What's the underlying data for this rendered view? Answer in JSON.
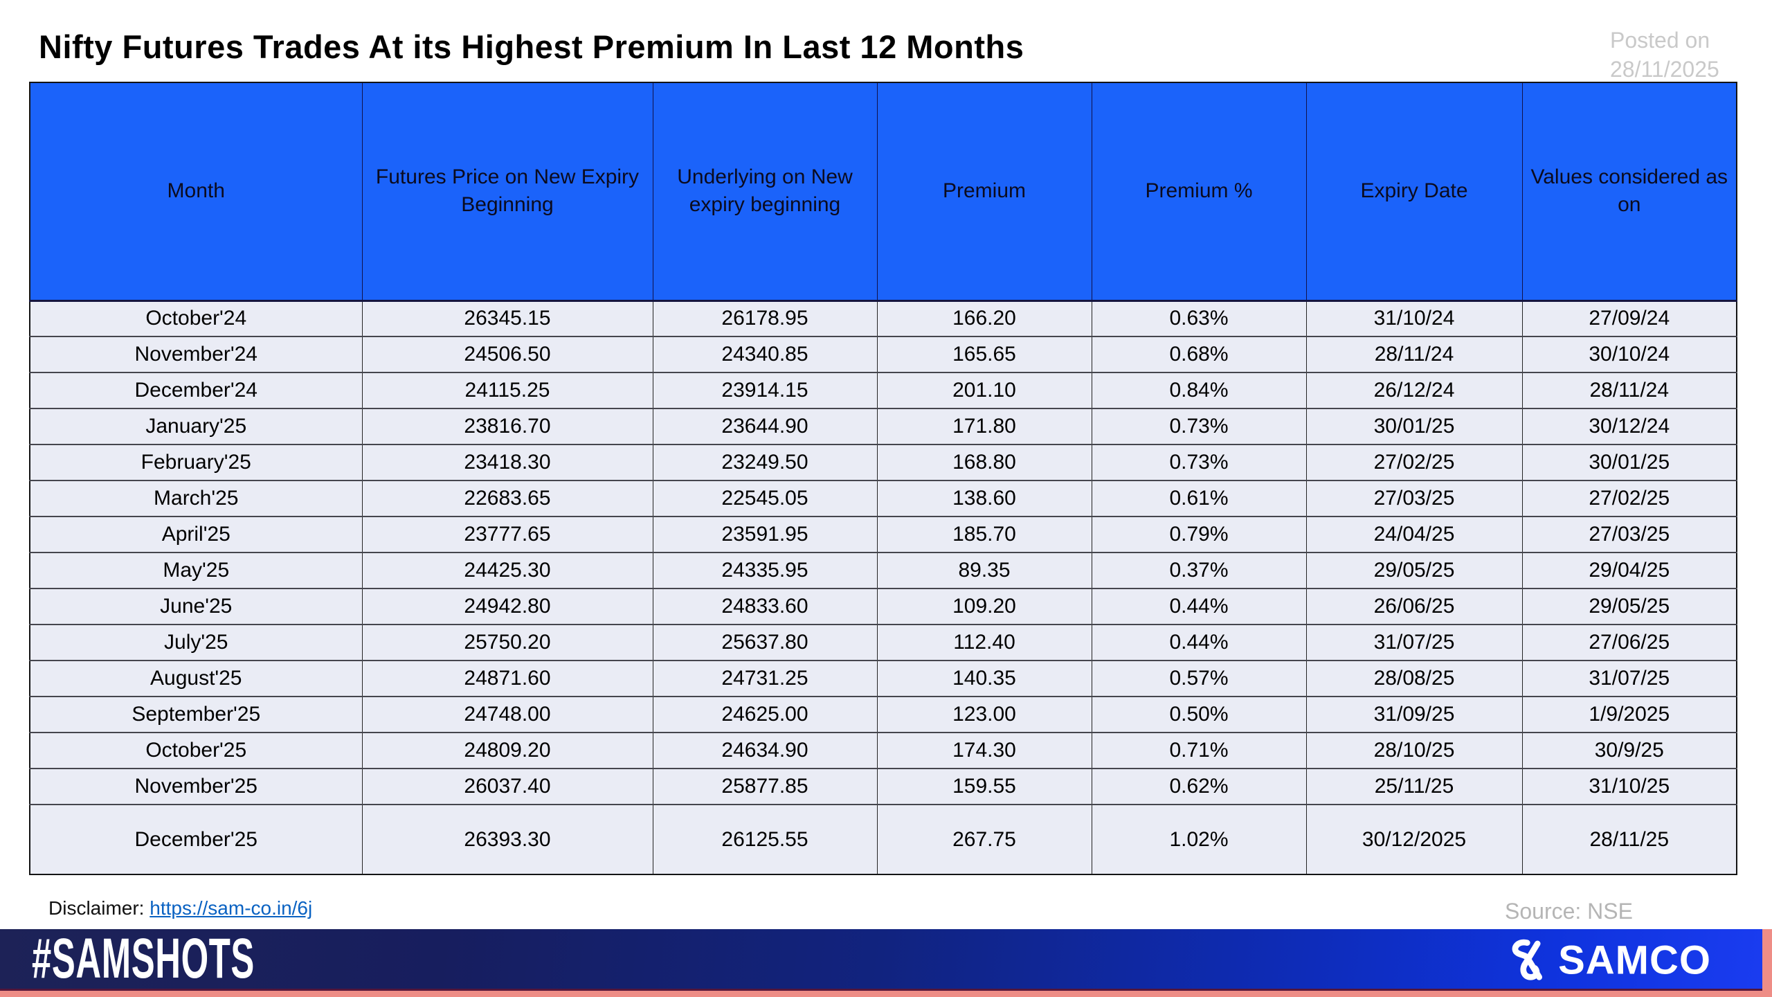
{
  "title": "Nifty Futures Trades At its Highest Premium In Last 12 Months",
  "posted_on": {
    "label": "Posted on",
    "date": "28/11/2025"
  },
  "chart_data": {
    "type": "table",
    "title": "Nifty Futures Trades At its Highest Premium In Last 12 Months",
    "columns": [
      "Month",
      "Futures Price on New Expiry Beginning",
      "Underlying on New expiry beginning",
      "Premium",
      "Premium %",
      "Expiry Date",
      "Values considered as on"
    ],
    "rows": [
      [
        "October'24",
        "26345.15",
        "26178.95",
        "166.20",
        "0.63%",
        "31/10/24",
        "27/09/24"
      ],
      [
        "November'24",
        "24506.50",
        "24340.85",
        "165.65",
        "0.68%",
        "28/11/24",
        "30/10/24"
      ],
      [
        "December'24",
        "24115.25",
        "23914.15",
        "201.10",
        "0.84%",
        "26/12/24",
        "28/11/24"
      ],
      [
        "January'25",
        "23816.70",
        "23644.90",
        "171.80",
        "0.73%",
        "30/01/25",
        "30/12/24"
      ],
      [
        "February'25",
        "23418.30",
        "23249.50",
        "168.80",
        "0.73%",
        "27/02/25",
        "30/01/25"
      ],
      [
        "March'25",
        "22683.65",
        "22545.05",
        "138.60",
        "0.61%",
        "27/03/25",
        "27/02/25"
      ],
      [
        "April'25",
        "23777.65",
        "23591.95",
        "185.70",
        "0.79%",
        "24/04/25",
        "27/03/25"
      ],
      [
        "May'25",
        "24425.30",
        "24335.95",
        "89.35",
        "0.37%",
        "29/05/25",
        "29/04/25"
      ],
      [
        "June'25",
        "24942.80",
        "24833.60",
        "109.20",
        "0.44%",
        "26/06/25",
        "29/05/25"
      ],
      [
        "July'25",
        "25750.20",
        "25637.80",
        "112.40",
        "0.44%",
        "31/07/25",
        "27/06/25"
      ],
      [
        "August'25",
        "24871.60",
        "24731.25",
        "140.35",
        "0.57%",
        "28/08/25",
        "31/07/25"
      ],
      [
        "September'25",
        "24748.00",
        "24625.00",
        "123.00",
        "0.50%",
        "31/09/25",
        "1/9/2025"
      ],
      [
        "October'25",
        "24809.20",
        "24634.90",
        "174.30",
        "0.71%",
        "28/10/25",
        "30/9/25"
      ],
      [
        "November'25",
        "26037.40",
        "25877.85",
        "159.55",
        "0.62%",
        "25/11/25",
        "31/10/25"
      ],
      [
        "December'25",
        "26393.30",
        "26125.55",
        "267.75",
        "1.02%",
        "30/12/2025",
        "28/11/25"
      ]
    ]
  },
  "footer": {
    "disclaimer_label": "Disclaimer:",
    "disclaimer_link": "https://sam-co.in/6j",
    "source": "Source: NSE",
    "hashtag": "#SAMSHOTS",
    "brand": "SAMCO"
  },
  "colors": {
    "header_blue": "#1b63fa",
    "row_background": "#eaecf5",
    "bar_navy": "#1d2257",
    "bar_blue": "#1a3cf0",
    "salmon_accent": "#ee8d86",
    "link_blue": "#0a62c2",
    "muted_gray": "#c9c9c9"
  }
}
